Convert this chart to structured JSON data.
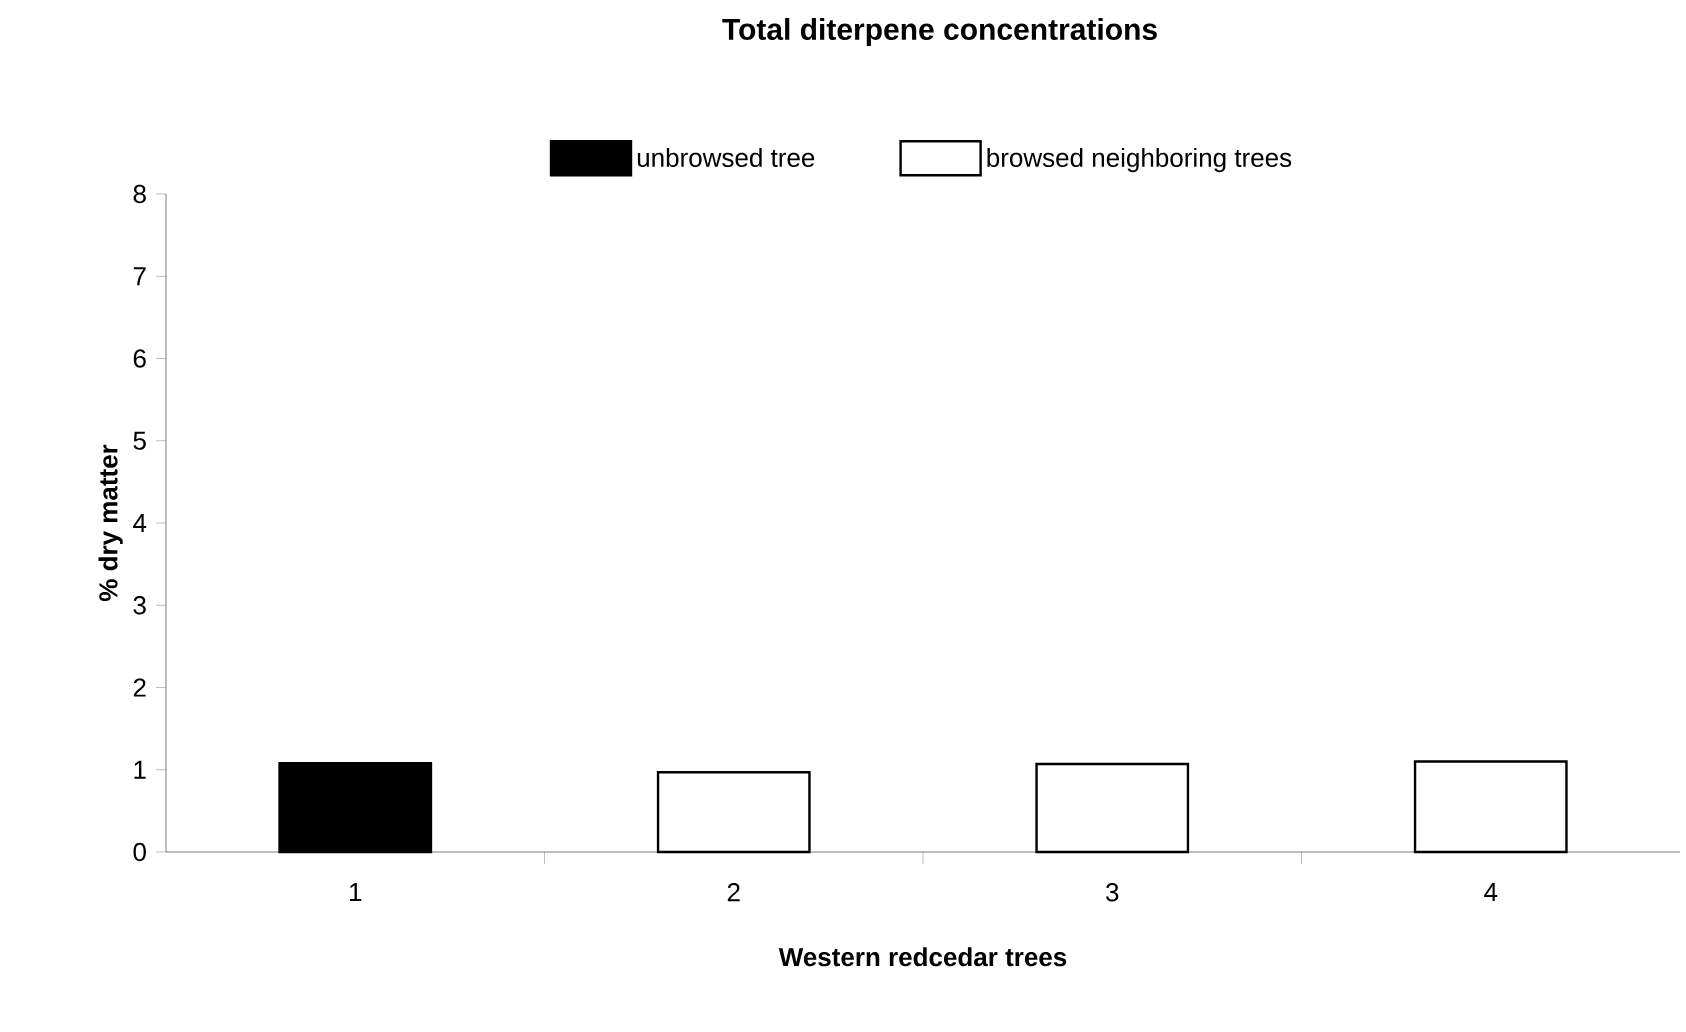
{
  "chart_data": {
    "type": "bar",
    "title": "Total diterpene concentrations",
    "xlabel": "Western redcedar trees",
    "ylabel": "% dry matter",
    "categories": [
      "1",
      "2",
      "3",
      "4"
    ],
    "series": [
      {
        "name": "unbrowsed tree",
        "color": "#000000",
        "values": [
          1.08,
          null,
          null,
          null
        ]
      },
      {
        "name": "browsed neighboring trees",
        "color": "#ffffff",
        "values": [
          null,
          0.97,
          1.07,
          1.1
        ]
      }
    ],
    "ylim": [
      0,
      8
    ],
    "yticks": [
      0,
      1,
      2,
      3,
      4,
      5,
      6,
      7,
      8
    ],
    "grid": false,
    "legend": "top"
  }
}
